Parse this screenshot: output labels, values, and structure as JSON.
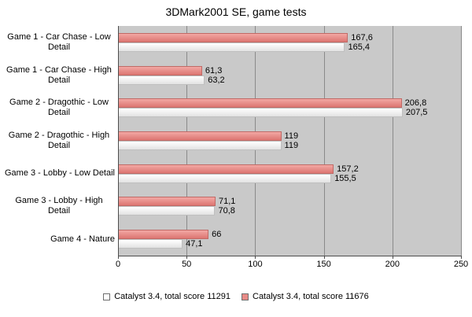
{
  "chart_data": {
    "type": "bar",
    "orientation": "horizontal",
    "title": "3DMark2001 SE, game tests",
    "categories": [
      "Game 1 - Car Chase - Low Detail",
      "Game 1 - Car Chase - High Detail",
      "Game 2 - Dragothic - Low Detail",
      "Game 2 - Dragothic - High Detail",
      "Game 3 - Lobby - Low Detail",
      "Game 3 - Lobby - High Detail",
      "Game 4 - Nature"
    ],
    "series": [
      {
        "name": "Catalyst 3.4, total score 11676",
        "color": "#e78a86",
        "values": [
          167.6,
          61.3,
          206.8,
          119,
          157.2,
          71.1,
          66
        ],
        "labels": [
          "167,6",
          "61,3",
          "206,8",
          "119",
          "157,2",
          "71,1",
          "66"
        ]
      },
      {
        "name": "Catalyst 3.4, total score 11291",
        "color": "#ffffff",
        "values": [
          165.4,
          63.2,
          207.5,
          119,
          155.5,
          70.8,
          47.1
        ],
        "labels": [
          "165,4",
          "63,2",
          "207,5",
          "119",
          "155,5",
          "70,8",
          "47,1"
        ]
      }
    ],
    "xlim": [
      0,
      250
    ],
    "xticks": [
      0,
      50,
      100,
      150,
      200,
      250
    ],
    "gridlines": true,
    "plot_background": "#c9c9c9",
    "legend_position": "bottom",
    "legend": [
      {
        "label": "Catalyst 3.4, total score 11291",
        "swatch": "#ffffff"
      },
      {
        "label": "Catalyst 3.4, total score 11676",
        "swatch": "#e78a86"
      }
    ]
  }
}
